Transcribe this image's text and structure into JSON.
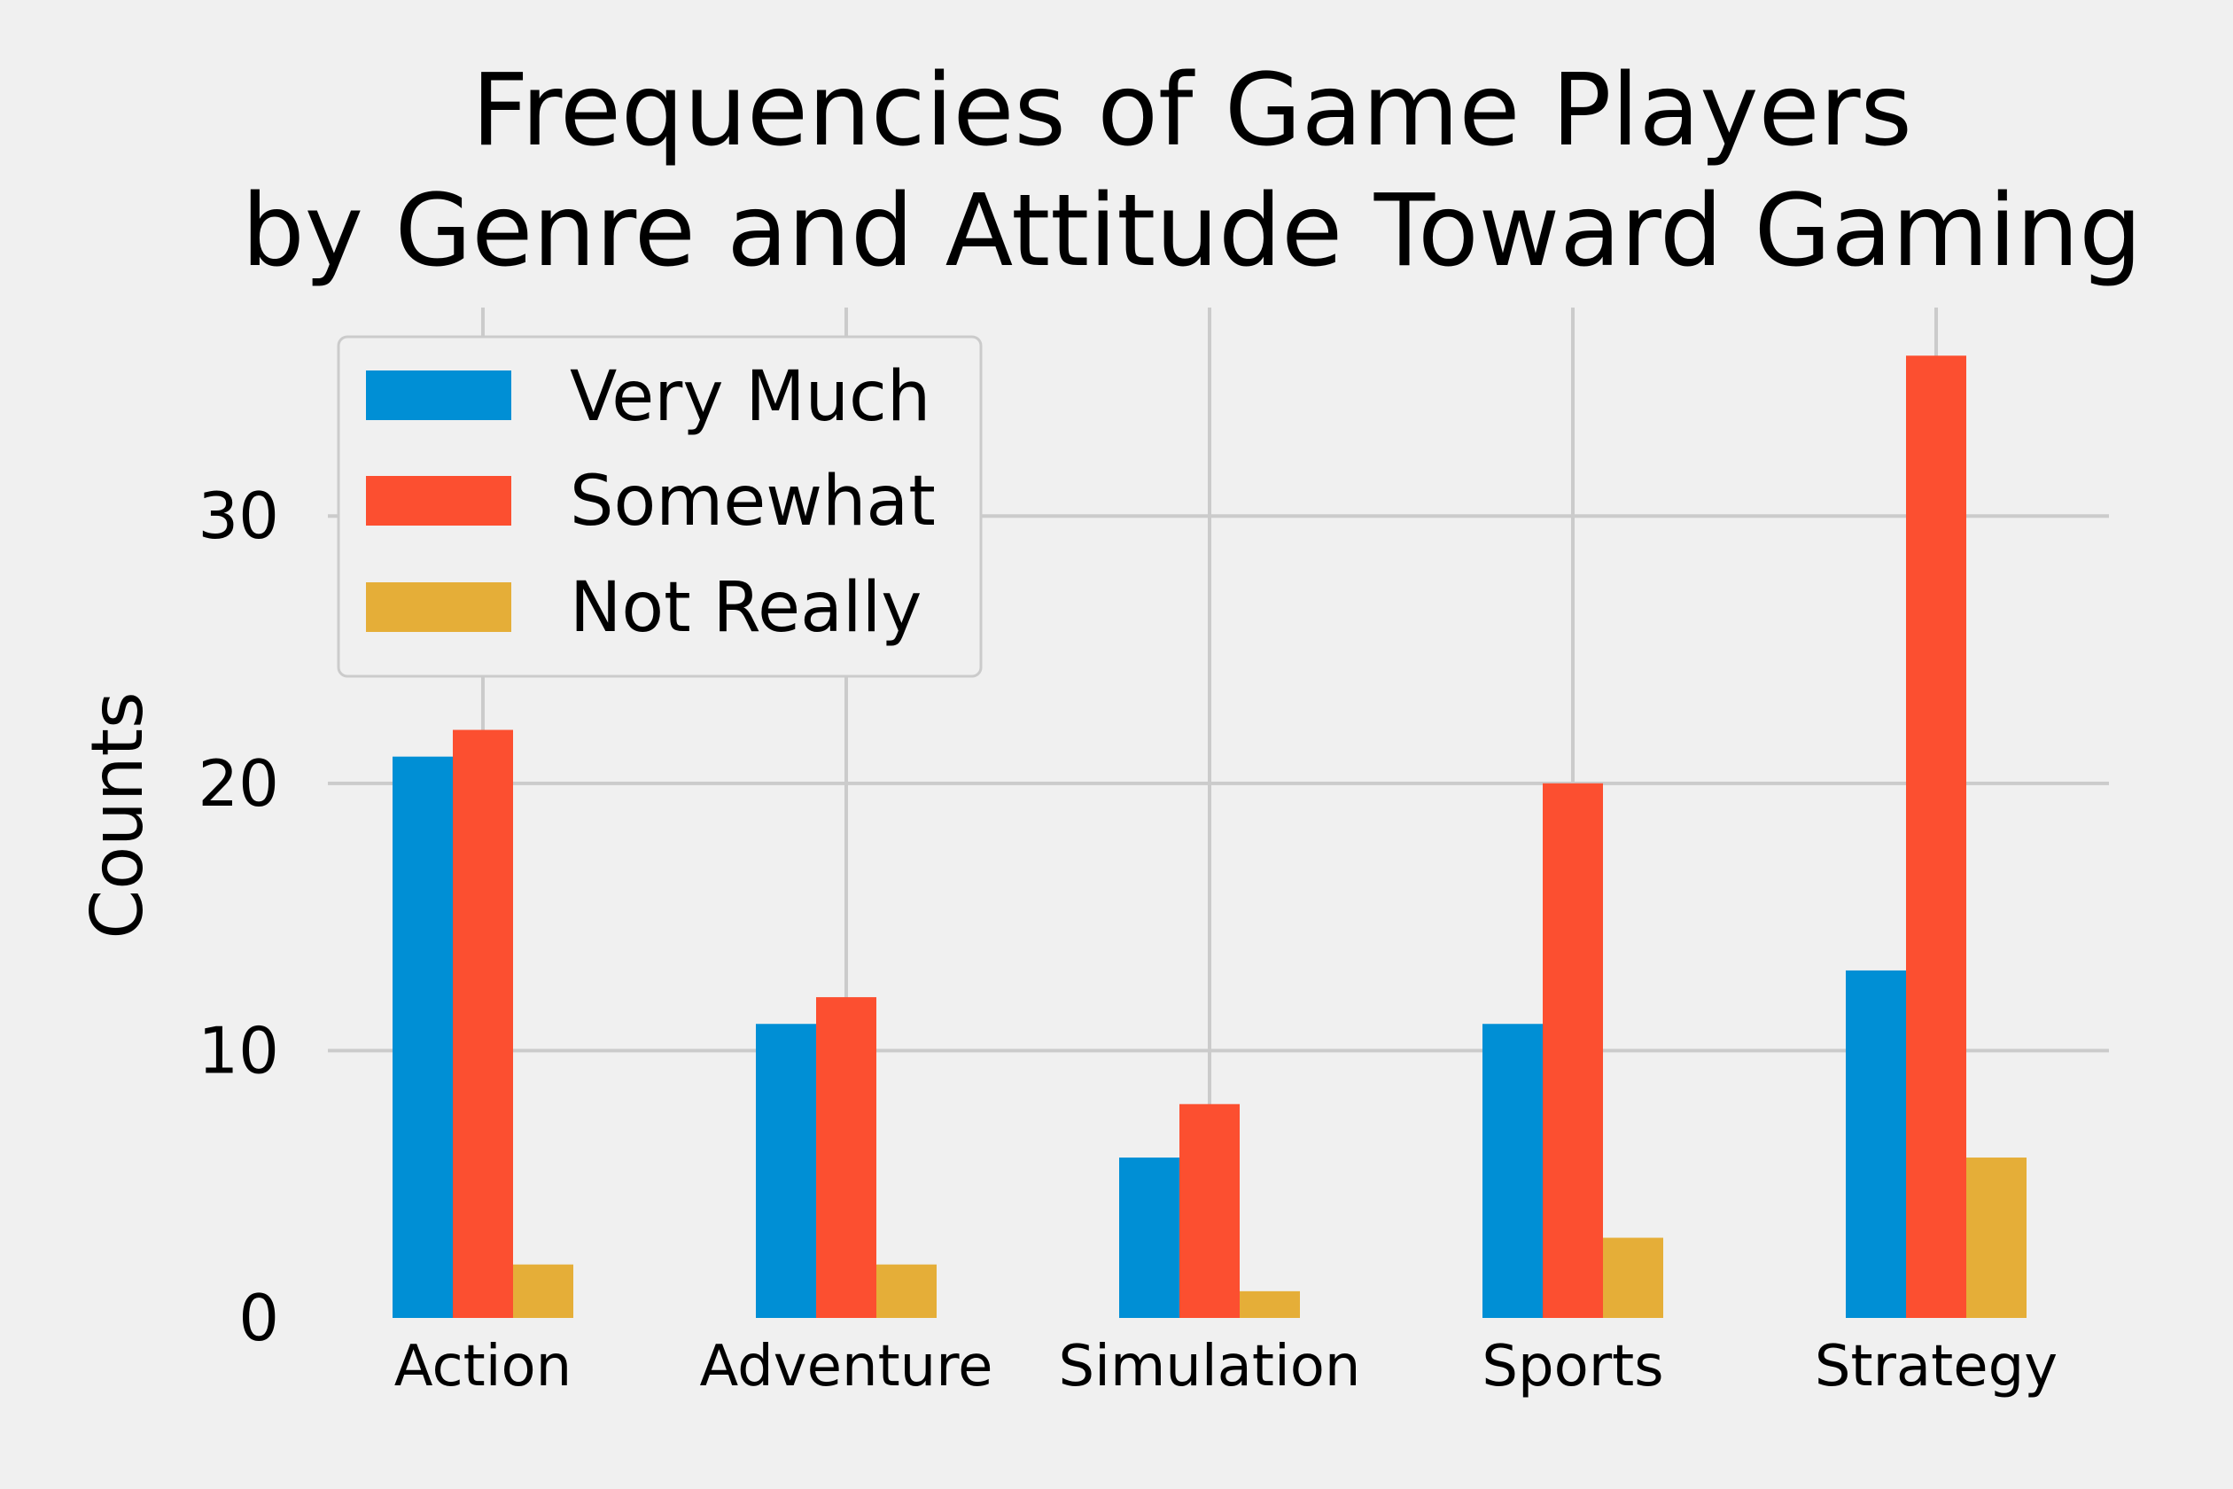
{
  "chart_data": {
    "type": "bar",
    "title_lines": [
      "Frequencies of Game Players",
      "by Genre and Attitude Toward Gaming"
    ],
    "xlabel": "",
    "ylabel": "Counts",
    "categories": [
      "Action",
      "Adventure",
      "Simulation",
      "Sports",
      "Strategy"
    ],
    "series": [
      {
        "name": "Very Much",
        "color": "#008fd5",
        "values": [
          21,
          11,
          6,
          11,
          13
        ]
      },
      {
        "name": "Somewhat",
        "color": "#fc4f30",
        "values": [
          22,
          12,
          8,
          20,
          36
        ]
      },
      {
        "name": "Not Really",
        "color": "#e5ae38",
        "values": [
          2,
          2,
          1,
          3,
          6
        ]
      }
    ],
    "ylim": [
      0,
      37.8
    ],
    "yticks": [
      0,
      10,
      20,
      30
    ],
    "grid": true,
    "legend": "upper left",
    "background": "#f0f0f0",
    "grid_color": "#cbcbcb"
  }
}
